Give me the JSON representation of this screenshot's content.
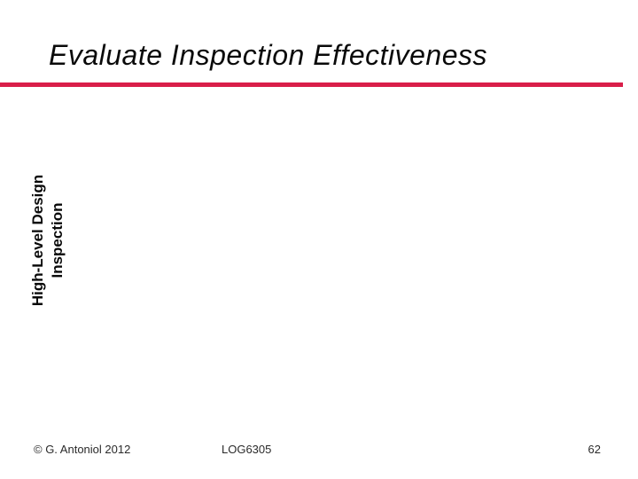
{
  "slide": {
    "title": "Evaluate Inspection Effectiveness",
    "accent_color": "#d91e49",
    "sidebar_label": {
      "line1": "High-Level Design",
      "line2": "Inspection"
    },
    "footer": {
      "copyright": "© G. Antoniol 2012",
      "course": "LOG6305",
      "page_number": "62"
    }
  }
}
